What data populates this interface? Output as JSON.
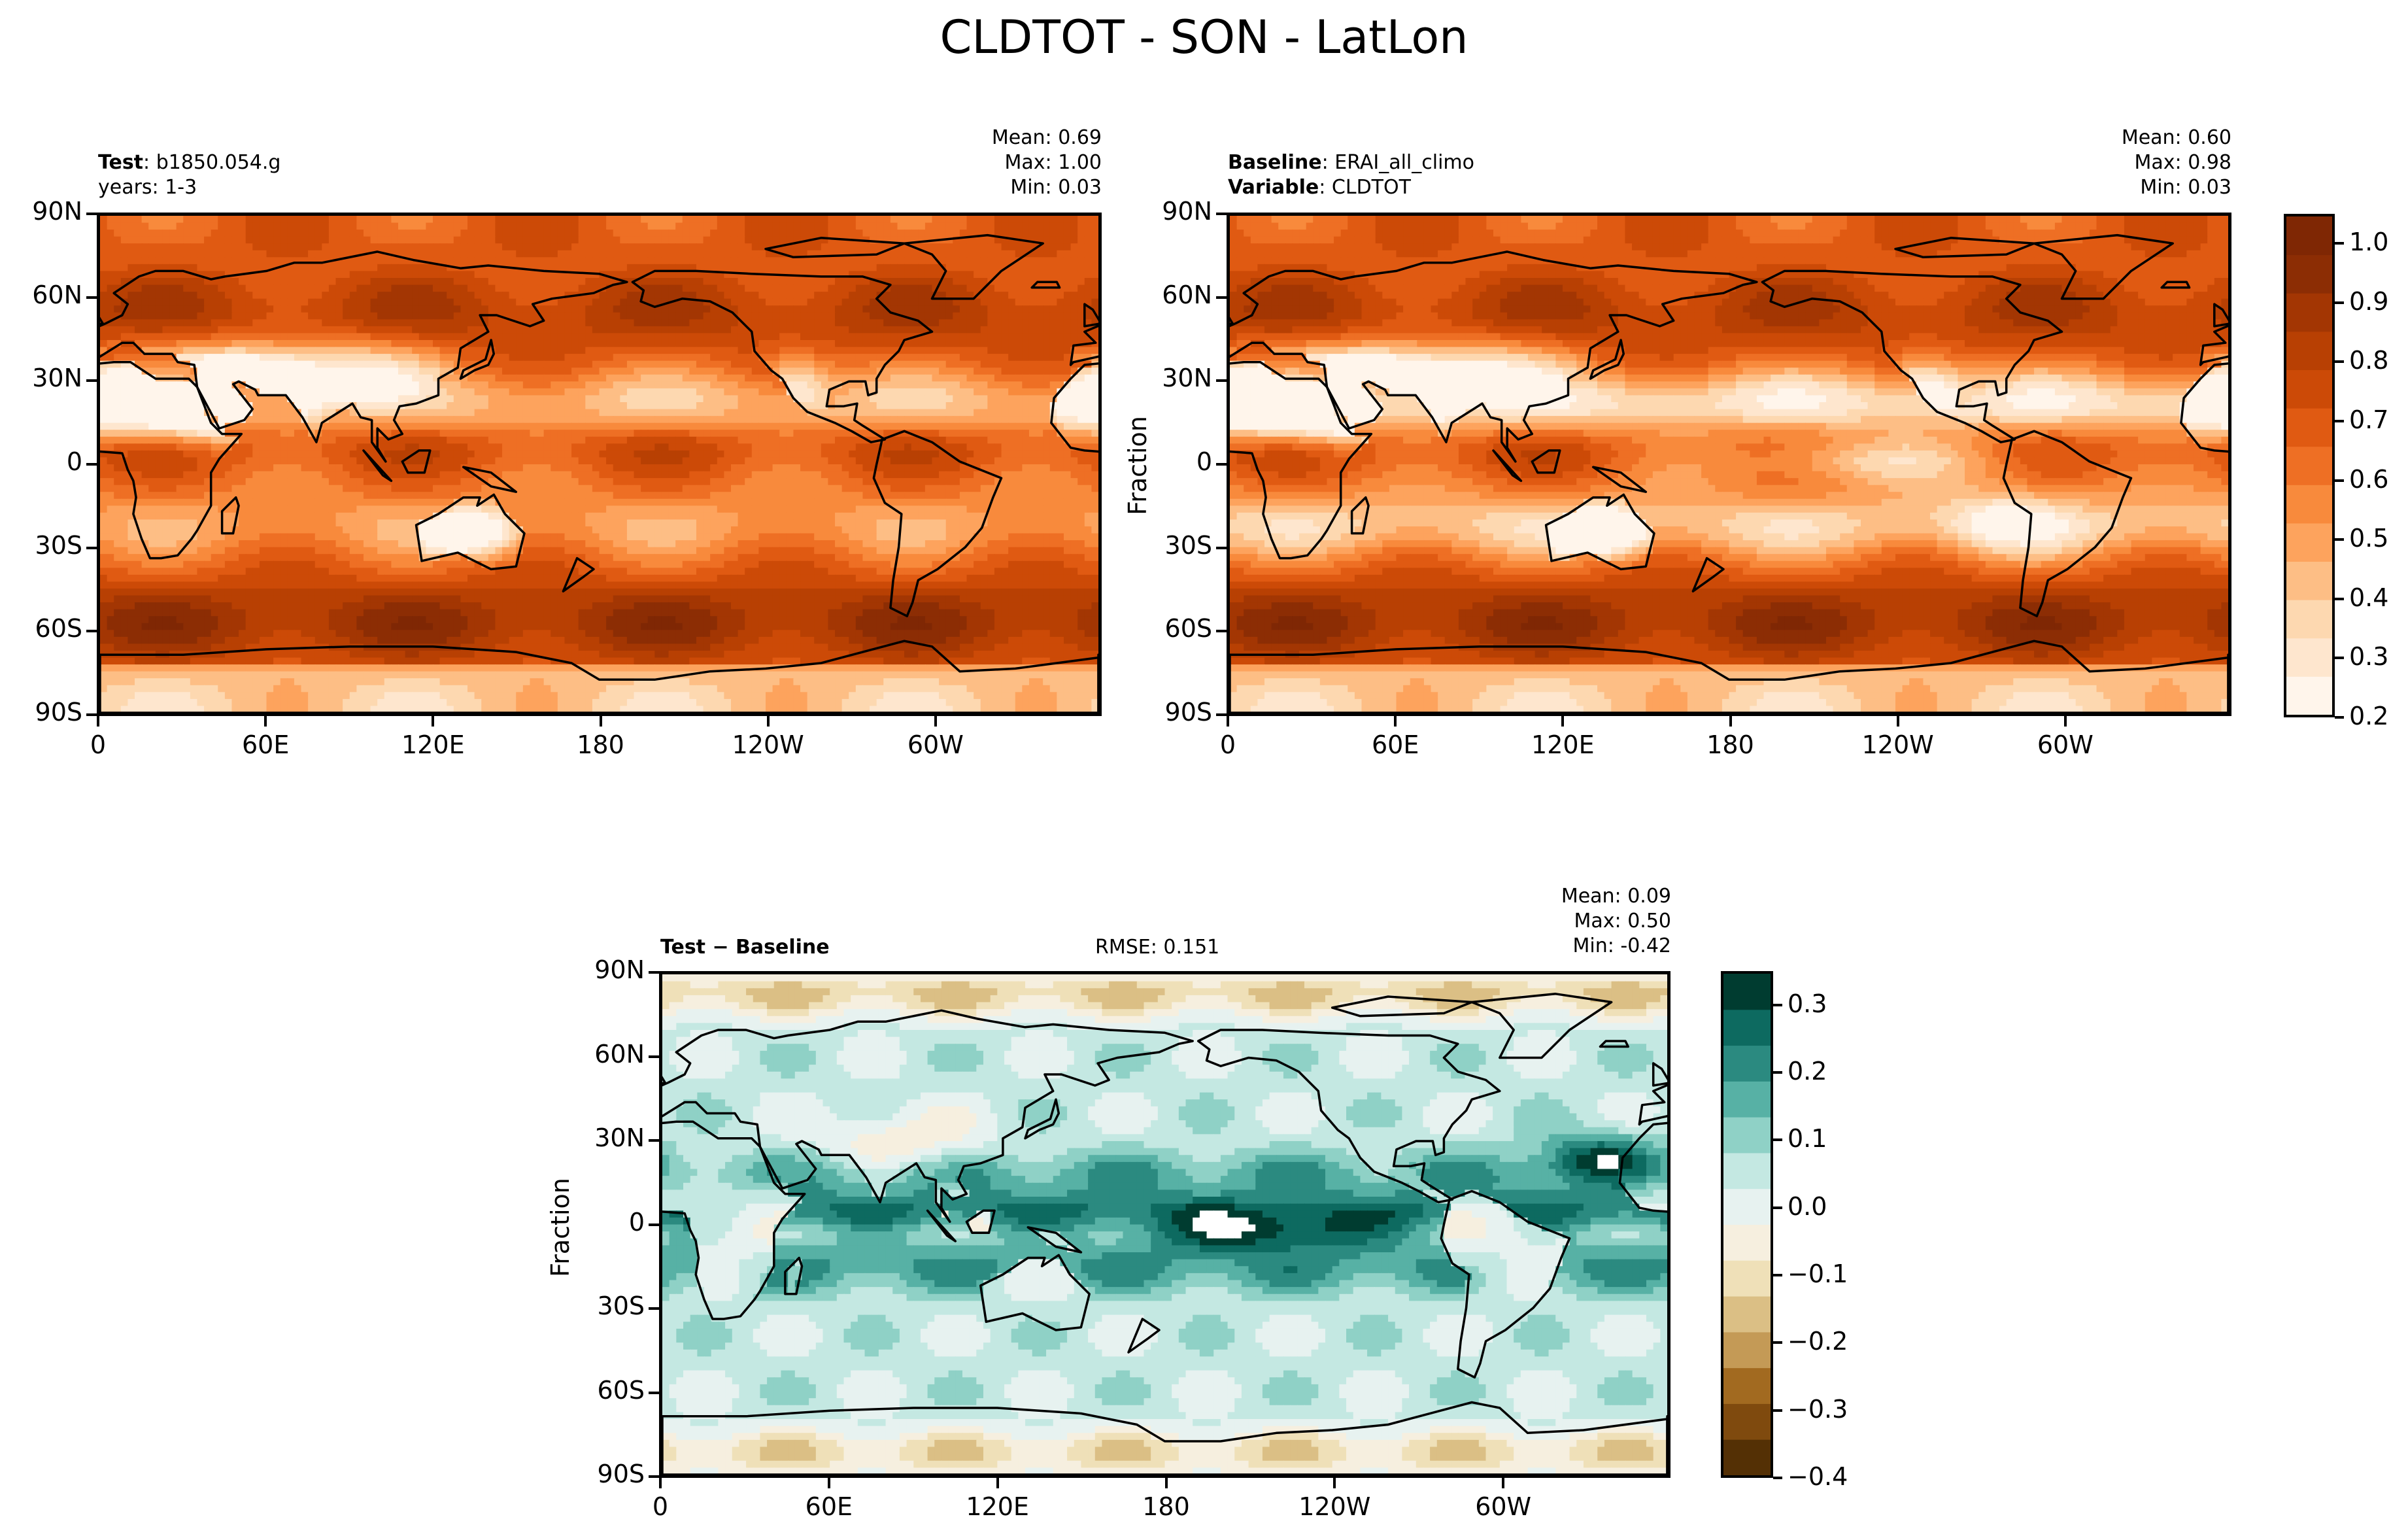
{
  "figure": {
    "title": "CLDTOT - SON - LatLon"
  },
  "colors": {
    "orange_ramp": [
      "#fff5eb",
      "#fee6ce",
      "#fdd8b0",
      "#fdbe85",
      "#fda35d",
      "#f88a3c",
      "#ee6f24",
      "#e05a12",
      "#cc4a07",
      "#b84003",
      "#a33603",
      "#8c2d04",
      "#7f2704"
    ],
    "diverging_ramp": [
      "#543005",
      "#7f4a0e",
      "#a26a20",
      "#c49a56",
      "#dbbf85",
      "#efe0b8",
      "#f6efdf",
      "#e7f2f0",
      "#c4e8e2",
      "#8fd1c6",
      "#57b1a5",
      "#2b8a80",
      "#0d6a60",
      "#003c30"
    ]
  },
  "panels": {
    "test": {
      "label_bold": "Test",
      "label_sep": ":",
      "label_value": "b1850.054.g",
      "line2": "years: 1-3",
      "stats": {
        "mean": "Mean:  0.69",
        "max": "Max:  1.00",
        "min": "Min:  0.03"
      }
    },
    "baseline": {
      "label_bold": "Baseline",
      "label_sep": ":",
      "label_value": "ERAI_all_climo",
      "line2_bold": "Variable",
      "line2_value": "CLDTOT",
      "stats": {
        "mean": "Mean:  0.60",
        "max": "Max:  0.98",
        "min": "Min:  0.03"
      }
    },
    "diff": {
      "label": "Test − Baseline",
      "rmse": "RMSE: 0.151",
      "stats": {
        "mean": "Mean:  0.09",
        "max": "Max:  0.50",
        "min": "Min: -0.42"
      }
    },
    "ylabel": "Fraction"
  },
  "axes": {
    "lat_ticks": [
      "90N",
      "60N",
      "30N",
      "0",
      "30S",
      "60S",
      "90S"
    ],
    "lon_ticks": [
      "0",
      "60E",
      "120E",
      "180",
      "120W",
      "60W"
    ]
  },
  "chart_data": [
    {
      "type": "heatmap",
      "title": "CLDTOT - SON - LatLon",
      "panel": "Test",
      "series_name": "b1850.054.g",
      "x_ticks": [
        "0",
        "60E",
        "120E",
        "180",
        "120W",
        "60W"
      ],
      "y_ticks": [
        "90N",
        "60N",
        "30N",
        "0",
        "30S",
        "60S",
        "90S"
      ],
      "stats": {
        "mean": 0.69,
        "max": 1.0,
        "min": 0.03
      }
    },
    {
      "type": "heatmap",
      "panel": "Baseline",
      "series_name": "ERAI_all_climo",
      "ylabel": "Fraction",
      "x_ticks": [
        "0",
        "60E",
        "120E",
        "180",
        "120W",
        "60W"
      ],
      "y_ticks": [
        "90N",
        "60N",
        "30N",
        "0",
        "30S",
        "60S",
        "90S"
      ],
      "stats": {
        "mean": 0.6,
        "max": 0.98,
        "min": 0.03
      },
      "colorbar": {
        "ticks": [
          "1.0",
          "0.9",
          "0.8",
          "0.7",
          "0.6",
          "0.5",
          "0.4",
          "0.3",
          "0.2"
        ],
        "range": [
          0.2,
          1.05
        ]
      }
    },
    {
      "type": "heatmap",
      "panel": "Test − Baseline",
      "ylabel": "Fraction",
      "rmse": 0.151,
      "x_ticks": [
        "0",
        "60E",
        "120E",
        "180",
        "120W",
        "60W"
      ],
      "y_ticks": [
        "90N",
        "60N",
        "30N",
        "0",
        "30S",
        "60S",
        "90S"
      ],
      "stats": {
        "mean": 0.09,
        "max": 0.5,
        "min": -0.42
      },
      "colorbar": {
        "ticks": [
          "0.3",
          "0.2",
          "0.1",
          "0.0",
          "−0.1",
          "−0.2",
          "−0.3",
          "−0.4"
        ],
        "range": [
          -0.4,
          0.35
        ]
      }
    }
  ]
}
